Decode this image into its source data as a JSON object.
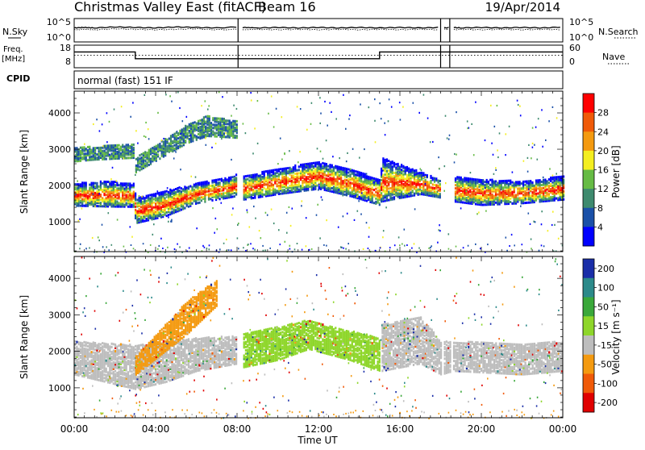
{
  "header": {
    "title": "Christmas Valley East (fitACF)",
    "beam": "Beam 16",
    "date": "19/Apr/2014"
  },
  "chart_data": [
    {
      "type": "line",
      "panel": "noise",
      "ylabel": "N.Sky",
      "ylabel_right": "N.Search",
      "yticks_left": [
        "10^5",
        "10^0"
      ],
      "yticks_right": [
        "10^5",
        "10^0"
      ],
      "x": [
        0,
        0.5,
        1,
        2,
        3,
        4,
        5,
        6,
        7,
        8.1,
        8.3,
        9,
        10,
        11,
        12,
        13,
        14,
        15,
        16,
        17,
        18,
        18.2,
        18.6,
        19,
        20,
        21,
        22,
        23,
        24
      ],
      "series": [
        {
          "values": [
            3.0,
            3.1,
            3.0,
            3.2,
            3.1,
            3.0,
            3.2,
            3.1,
            3.0,
            3.2,
            3.1,
            3.0,
            3.1,
            3.0,
            3.1,
            3.0,
            3.1,
            3.0,
            3.1,
            3.0,
            3.1,
            3.0,
            3.1,
            3.0,
            3.1,
            3.0,
            3.1,
            3.0,
            3.2
          ]
        },
        {
          "values": [
            2.6,
            2.7,
            2.6,
            2.8,
            2.7,
            2.6,
            2.7,
            2.8,
            2.6,
            2.7,
            2.6,
            2.7,
            2.6,
            2.7,
            2.6,
            2.7,
            2.6,
            2.7,
            2.6,
            2.7,
            2.6,
            2.7,
            2.6,
            2.7,
            2.6,
            2.7,
            2.6,
            2.7,
            2.6
          ]
        }
      ],
      "gaps_hours": [
        [
          8.05,
          8.25
        ],
        [
          18.0,
          18.15
        ],
        [
          18.45,
          18.6
        ]
      ]
    },
    {
      "type": "line",
      "panel": "frequency",
      "ylabel": "Freq.",
      "ylabel_unit": "[MHz]",
      "ylabel_right": "Nave",
      "yticks_left": [
        "18",
        "8"
      ],
      "yticks_right": [
        "60",
        "0"
      ],
      "series": [
        {
          "x": [
            0,
            3.0,
            3.0,
            15.0,
            15.0,
            24
          ],
          "values": [
            15,
            15,
            12,
            12,
            15,
            15
          ]
        },
        {
          "x": [
            0,
            24
          ],
          "values": [
            13.5,
            13.5
          ]
        }
      ]
    },
    {
      "type": "text",
      "panel": "cpid",
      "label": "CPID",
      "value": "normal (fast) 151 IF"
    },
    {
      "type": "heatmap",
      "panel": "power",
      "ylabel": "Slant Range [km]",
      "yticks": [
        "1000",
        "2000",
        "3000",
        "4000"
      ],
      "ylim": [
        180,
        4600
      ],
      "colorbar_label": "Power [dB]",
      "colorbar_ticks": [
        "4",
        "8",
        "12",
        "16",
        "20",
        "24",
        "28"
      ],
      "colors": [
        "#0000ff",
        "#1a50a8",
        "#3e8a6e",
        "#66bb44",
        "#f4ee20",
        "#f49a10",
        "#f05a08",
        "#ff0000"
      ],
      "bands": [
        {
          "x": [
            0,
            1.5,
            2.9,
            3.0,
            4.5,
            6,
            7.5,
            8.0
          ],
          "lo": [
            1480,
            1460,
            1450,
            1000,
            1200,
            1550,
            1700,
            1750
          ],
          "hi": [
            2100,
            2150,
            2100,
            1700,
            1900,
            2100,
            2250,
            2350
          ]
        },
        {
          "x": [
            8.3,
            10,
            12,
            13.5,
            15.0,
            15.1,
            17,
            18.0
          ],
          "lo": [
            1650,
            1800,
            1950,
            1750,
            1500,
            1600,
            1800,
            1700
          ],
          "hi": [
            2300,
            2500,
            2700,
            2500,
            2200,
            2800,
            2400,
            2200
          ]
        },
        {
          "x": [
            18.6,
            20,
            22,
            24
          ],
          "lo": [
            1600,
            1500,
            1550,
            1650
          ],
          "hi": [
            2300,
            2200,
            2150,
            2300
          ]
        },
        {
          "x": [
            3.0,
            5.5,
            6.5,
            8.0
          ],
          "lo": [
            2400,
            3200,
            3400,
            3350
          ],
          "hi": [
            2800,
            3700,
            3950,
            3800
          ]
        },
        {
          "x": [
            0,
            1,
            2.9
          ],
          "lo": [
            2700,
            2750,
            2800
          ],
          "hi": [
            3100,
            3100,
            3200
          ]
        }
      ],
      "data_gaps": [
        [
          8.05,
          8.25
        ],
        [
          18.0,
          18.15
        ],
        [
          18.45,
          18.6
        ]
      ]
    },
    {
      "type": "heatmap",
      "panel": "velocity",
      "ylabel": "Slant Range [km]",
      "yticks": [
        "1000",
        "2000",
        "3000",
        "4000"
      ],
      "ylim": [
        180,
        4600
      ],
      "colorbar_label": "Velocity [m s⁻¹]",
      "colorbar_ticks": [
        "200",
        "100",
        "50",
        "15",
        "-15",
        "-50",
        "-100",
        "-200"
      ],
      "colors": [
        "#1a2ea8",
        "#2c8a8a",
        "#3aa83a",
        "#8ed62a",
        "#bdbdbd",
        "#f49a10",
        "#f05a08",
        "#e00000"
      ],
      "bands": [
        {
          "x": [
            0,
            3.0,
            4.5,
            6,
            8.0
          ],
          "lo": [
            1400,
            1000,
            1200,
            1500,
            1700
          ],
          "hi": [
            2300,
            2200,
            2300,
            2400,
            2450
          ],
          "color_index": 4
        },
        {
          "x": [
            3.0,
            5.5,
            7.0
          ],
          "lo": [
            1400,
            2500,
            3300
          ],
          "hi": [
            1900,
            3400,
            4000
          ],
          "color_index": 5
        },
        {
          "x": [
            8.3,
            10,
            11.5,
            13.5,
            15.0
          ],
          "lo": [
            1600,
            1800,
            2100,
            1800,
            1500
          ],
          "hi": [
            2500,
            2700,
            2900,
            2600,
            2400
          ],
          "color_index": 3
        },
        {
          "x": [
            15.1,
            17,
            18.0,
            18.6,
            22,
            24
          ],
          "lo": [
            1500,
            1700,
            1400,
            1500,
            1400,
            1500
          ],
          "hi": [
            2800,
            3000,
            2300,
            2300,
            2250,
            2300
          ],
          "color_index": 4
        }
      ],
      "data_gaps": [
        [
          8.05,
          8.25
        ],
        [
          18.0,
          18.15
        ],
        [
          18.45,
          18.6
        ]
      ]
    }
  ],
  "x_axis": {
    "label": "Time UT",
    "ticks": [
      "00:00",
      "04:00",
      "08:00",
      "12:00",
      "16:00",
      "20:00",
      "00:00"
    ],
    "xlim": [
      0,
      24
    ]
  }
}
